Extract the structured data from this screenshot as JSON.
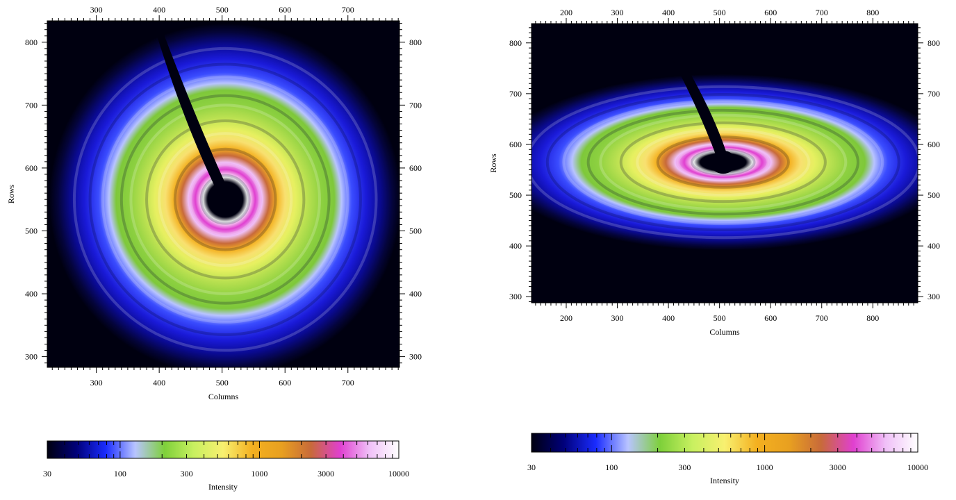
{
  "chart_data": [
    {
      "type": "heatmap",
      "description_kind": "2D diffraction intensity image (concentric rings, beamstop shadow)",
      "xlabel": "Columns",
      "ylabel": "Rows",
      "xlim": [
        222,
        782
      ],
      "ylim": [
        283,
        834
      ],
      "xticks": [
        300,
        400,
        500,
        600,
        700
      ],
      "yticks": [
        300,
        400,
        500,
        600,
        700,
        800
      ],
      "center": {
        "x": 505,
        "y": 550
      },
      "scale": {
        "x": 1.0,
        "y": 1.0
      },
      "ring_radii": [
        38,
        55,
        80,
        105,
        125,
        150,
        165,
        195,
        215,
        240
      ],
      "grid": false
    },
    {
      "type": "heatmap",
      "description_kind": "2D diffraction intensity image (elliptical rings, beamstop shadow)",
      "xlabel": "Columns",
      "ylabel": "Rows",
      "xlim": [
        132,
        888
      ],
      "ylim": [
        288,
        838
      ],
      "xticks": [
        200,
        300,
        400,
        500,
        600,
        700,
        800
      ],
      "yticks": [
        300,
        400,
        500,
        600,
        700,
        800
      ],
      "center": {
        "x": 507,
        "y": 565
      },
      "scale": {
        "x": 1.6,
        "y": 0.62
      },
      "ring_radii": [
        38,
        55,
        80,
        105,
        125,
        150,
        165,
        195,
        215,
        240
      ],
      "grid": false
    }
  ],
  "colorbars": [
    {
      "label": "Intensity",
      "scale": "log",
      "range": [
        30,
        10000
      ],
      "tick_labels": [
        "30",
        "100",
        "300",
        "1000",
        "3000",
        "10000"
      ],
      "colors": [
        "#000010",
        "#00007a",
        "#1a2cff",
        "#b8c4ff",
        "#7ed03a",
        "#c8f060",
        "#f8f070",
        "#f4b020",
        "#e8a020",
        "#c86a3a",
        "#e040d0",
        "#f0c0f8",
        "#ffffff"
      ]
    },
    {
      "label": "Intensity",
      "scale": "log",
      "range": [
        30,
        10000
      ],
      "tick_labels": [
        "30",
        "100",
        "300",
        "1000",
        "3000",
        "10000"
      ],
      "colors": [
        "#000010",
        "#00007a",
        "#1a2cff",
        "#b8c4ff",
        "#7ed03a",
        "#c8f060",
        "#f8f070",
        "#f4b020",
        "#e8a020",
        "#c86a3a",
        "#e040d0",
        "#f0c0f8",
        "#ffffff"
      ]
    }
  ]
}
